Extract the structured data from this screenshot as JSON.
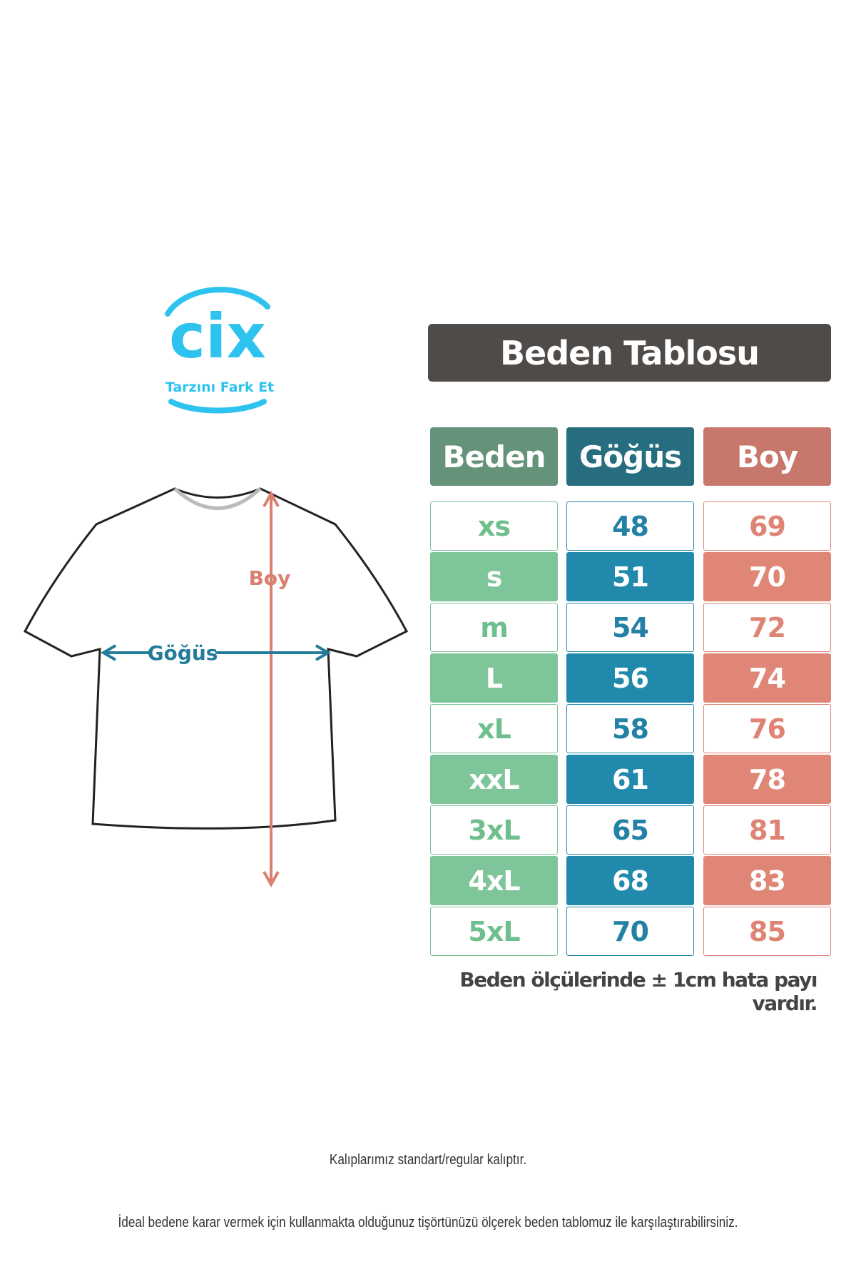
{
  "logo": {
    "text": "cix",
    "tagline": "Tarzını Fark Et",
    "color": "#2ec3ef"
  },
  "shirt": {
    "chest_label": "Göğüs",
    "length_label": "Boy",
    "chest_color": "#237c9a",
    "length_color": "#d98070"
  },
  "title": "Beden Tablosu",
  "headers": [
    {
      "label": "Beden",
      "color": "#659379"
    },
    {
      "label": "Göğüs",
      "color": "#256d7f"
    },
    {
      "label": "Boy",
      "color": "#c8776c"
    }
  ],
  "colors": {
    "size_fill": "#7fc59a",
    "chest_fill": "#2189ab",
    "length_fill": "#df8676",
    "size_text": "#6fbf8e",
    "chest_text": "#2381a5",
    "length_text": "#df8474"
  },
  "rows": [
    {
      "size": "xs",
      "chest": "48",
      "length": "69"
    },
    {
      "size": "s",
      "chest": "51",
      "length": "70"
    },
    {
      "size": "m",
      "chest": "54",
      "length": "72"
    },
    {
      "size": "L",
      "chest": "56",
      "length": "74"
    },
    {
      "size": "xL",
      "chest": "58",
      "length": "76"
    },
    {
      "size": "xxL",
      "chest": "61",
      "length": "78"
    },
    {
      "size": "3xL",
      "chest": "65",
      "length": "81"
    },
    {
      "size": "4xL",
      "chest": "68",
      "length": "83"
    },
    {
      "size": "5xL",
      "chest": "70",
      "length": "85"
    }
  ],
  "note": "Beden ölçülerinde ± 1cm hata payı vardır.",
  "footer": [
    "Kalıplarımız standart/regular kalıptır.",
    "İdeal bedene karar vermek için kullanmakta olduğunuz tişörtünüzü ölçerek beden tablomuz ile karşılaştırabilirsiniz."
  ]
}
